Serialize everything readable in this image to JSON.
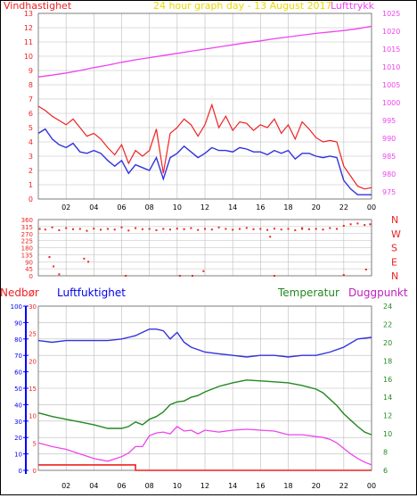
{
  "header": {
    "left_label": "Vindhastighet",
    "center_title": "24 hour graph day - 13 August 2017",
    "right_label": "Lufttrykk"
  },
  "bottom_header": {
    "nedbor": "Nedbør",
    "luftfuktighet": "Luftfuktighet",
    "temperatur": "Temperatur",
    "duggpunkt": "Duggpunkt"
  },
  "colors": {
    "wind_avg": "#3333dd",
    "wind_gust": "#ee2222",
    "pressure": "#ee44ee",
    "direction": "#ee2222",
    "humidity": "#3333dd",
    "temperature": "#228822",
    "dewpoint": "#ee44ee",
    "rain": "#ee2222",
    "rain_axis": "#0000ff",
    "grid": "#bbbbbb"
  },
  "x_ticks": [
    "02",
    "04",
    "06",
    "08",
    "10",
    "12",
    "14",
    "16",
    "18",
    "20",
    "22",
    "00"
  ],
  "chart_data": [
    {
      "type": "line",
      "title": "24 hour graph day - 13 August 2017",
      "x_range_hours": [
        0,
        24
      ],
      "xticks": [
        "02",
        "04",
        "06",
        "08",
        "10",
        "12",
        "14",
        "16",
        "18",
        "20",
        "22",
        "00"
      ],
      "grid": true,
      "y_left": {
        "label": "Vindhastighet",
        "range": [
          0,
          13
        ],
        "ticks": [
          "0",
          "1",
          "2",
          "3",
          "4",
          "5",
          "6",
          "7",
          "8",
          "9",
          "10",
          "11",
          "12",
          "13"
        ]
      },
      "y_right": {
        "label": "Lufttrykk",
        "range": [
          973,
          1025
        ],
        "ticks": [
          "975",
          "980",
          "985",
          "990",
          "995",
          "1000",
          "1005",
          "1010",
          "1015",
          "1020",
          "1025"
        ]
      },
      "series": [
        {
          "name": "Lufttrykk",
          "axis": "right",
          "x": [
            0,
            1,
            2,
            3,
            4,
            5,
            6,
            7,
            8,
            9,
            10,
            11,
            12,
            13,
            14,
            15,
            16,
            17,
            18,
            19,
            20,
            21,
            22,
            23,
            24
          ],
          "y": [
            1007.2,
            1007.7,
            1008.3,
            1009.0,
            1009.8,
            1010.5,
            1011.3,
            1012.0,
            1012.6,
            1013.2,
            1013.8,
            1014.4,
            1015.0,
            1015.6,
            1016.2,
            1016.8,
            1017.3,
            1017.9,
            1018.4,
            1018.9,
            1019.4,
            1019.8,
            1020.2,
            1020.7,
            1021.4
          ]
        },
        {
          "name": "Vindkast",
          "axis": "left",
          "x": [
            0,
            0.5,
            1,
            1.5,
            2,
            2.5,
            3,
            3.5,
            4,
            4.5,
            5,
            5.5,
            6,
            6.5,
            7,
            7.5,
            8,
            8.5,
            9,
            9.5,
            10,
            10.5,
            11,
            11.5,
            12,
            12.5,
            13,
            13.5,
            14,
            14.5,
            15,
            15.5,
            16,
            16.5,
            17,
            17.5,
            18,
            18.5,
            19,
            19.5,
            20,
            20.5,
            21,
            21.5,
            22,
            22.5,
            23,
            23.5,
            24
          ],
          "y": [
            6.5,
            6.2,
            5.8,
            5.5,
            5.2,
            5.6,
            5.0,
            4.4,
            4.6,
            4.2,
            3.6,
            3.1,
            3.8,
            2.5,
            3.4,
            3.0,
            3.4,
            4.9,
            1.8,
            4.6,
            5.0,
            5.6,
            5.2,
            4.4,
            5.2,
            6.6,
            5.0,
            5.8,
            4.8,
            5.4,
            5.3,
            4.8,
            5.2,
            5.0,
            5.6,
            4.6,
            5.2,
            4.2,
            5.4,
            4.9,
            4.3,
            4.0,
            4.1,
            4.0,
            2.3,
            1.6,
            0.9,
            0.7,
            0.8
          ]
        },
        {
          "name": "Vindhastighet",
          "axis": "left",
          "x": [
            0,
            0.5,
            1,
            1.5,
            2,
            2.5,
            3,
            3.5,
            4,
            4.5,
            5,
            5.5,
            6,
            6.5,
            7,
            7.5,
            8,
            8.5,
            9,
            9.5,
            10,
            10.5,
            11,
            11.5,
            12,
            12.5,
            13,
            13.5,
            14,
            14.5,
            15,
            15.5,
            16,
            16.5,
            17,
            17.5,
            18,
            18.5,
            19,
            19.5,
            20,
            20.5,
            21,
            21.5,
            22,
            22.5,
            23,
            23.5,
            24
          ],
          "y": [
            4.6,
            4.9,
            4.2,
            3.8,
            3.6,
            3.9,
            3.3,
            3.2,
            3.4,
            3.2,
            2.7,
            2.3,
            2.7,
            1.8,
            2.4,
            2.2,
            2.0,
            2.9,
            1.4,
            2.9,
            3.2,
            3.7,
            3.3,
            2.9,
            3.2,
            3.6,
            3.4,
            3.4,
            3.3,
            3.6,
            3.5,
            3.3,
            3.3,
            3.1,
            3.4,
            3.2,
            3.4,
            2.8,
            3.2,
            3.2,
            3.0,
            2.9,
            3.0,
            2.9,
            1.3,
            0.7,
            0.3,
            0.3,
            0.3
          ]
        }
      ]
    },
    {
      "type": "scatter",
      "x_range_hours": [
        0,
        24
      ],
      "y_left": {
        "range": [
          0,
          360
        ],
        "ticks": [
          "0",
          "45",
          "90",
          "135",
          "180",
          "225",
          "270",
          "315",
          "360"
        ]
      },
      "y_right": {
        "ticks": [
          "N",
          "W",
          "S",
          "E",
          "N"
        ]
      },
      "series": [
        {
          "name": "Vindretning",
          "x": [
            0.1,
            0.5,
            1.0,
            1.5,
            2.0,
            2.5,
            3.0,
            3.5,
            4.0,
            4.5,
            5.0,
            5.5,
            6.0,
            6.5,
            7.0,
            7.5,
            8.0,
            8.5,
            9.0,
            9.5,
            10.0,
            10.5,
            11.0,
            11.5,
            12.0,
            12.5,
            13.0,
            13.5,
            14.0,
            14.5,
            15.0,
            15.5,
            16.0,
            16.5,
            17.0,
            17.5,
            18.0,
            18.5,
            19.0,
            19.5,
            20.0,
            20.5,
            21.0,
            21.5,
            22.0,
            22.5,
            23.0,
            23.5,
            23.9,
            0.8,
            1.1,
            1.5,
            3.3,
            3.6,
            6.3,
            10.2,
            11.1,
            11.9,
            16.7,
            17.0,
            19.0,
            22.0,
            23.6
          ],
          "y": [
            300,
            296,
            310,
            292,
            305,
            298,
            300,
            288,
            302,
            295,
            300,
            296,
            310,
            290,
            305,
            298,
            300,
            292,
            300,
            296,
            302,
            298,
            305,
            294,
            300,
            296,
            310,
            300,
            295,
            300,
            306,
            298,
            300,
            294,
            302,
            296,
            300,
            292,
            305,
            298,
            300,
            296,
            305,
            300,
            320,
            330,
            335,
            325,
            330,
            120,
            60,
            10,
            110,
            90,
            0,
            0,
            0,
            30,
            250,
            0,
            300,
            5,
            40
          ]
        }
      ]
    },
    {
      "type": "line",
      "x_range_hours": [
        0,
        24
      ],
      "xticks": [
        "02",
        "04",
        "06",
        "08",
        "10",
        "12",
        "14",
        "16",
        "18",
        "20",
        "22",
        "00"
      ],
      "grid": true,
      "y_axis_nedbor": {
        "label": "Nedbør",
        "range": [
          0,
          30
        ],
        "ticks": [
          "0",
          "5",
          "10",
          "15",
          "20",
          "25",
          "30"
        ]
      },
      "y_axis_luftfuktighet": {
        "label": "Luftfuktighet",
        "range": [
          0,
          100
        ],
        "ticks": [
          "0",
          "10",
          "20",
          "30",
          "40",
          "50",
          "60",
          "70",
          "80",
          "90",
          "100"
        ]
      },
      "y_axis_temperatur": {
        "label": "Temperatur",
        "range": [
          6,
          24
        ],
        "ticks": [
          "6",
          "8",
          "10",
          "12",
          "14",
          "16",
          "18",
          "20",
          "22",
          "24"
        ]
      },
      "series": [
        {
          "name": "Luftfuktighet",
          "axis": "humidity",
          "x": [
            0,
            1,
            2,
            3,
            4,
            5,
            6,
            6.5,
            7,
            7.5,
            8,
            8.5,
            9,
            9.5,
            10,
            10.5,
            11,
            12,
            13,
            14,
            15,
            16,
            17,
            18,
            19,
            20,
            21,
            22,
            23,
            24
          ],
          "y": [
            79,
            78,
            79,
            79,
            79,
            79,
            80,
            81,
            82,
            84,
            86,
            86,
            85,
            80,
            84,
            78,
            75,
            72,
            71,
            70,
            69,
            70,
            70,
            69,
            70,
            70,
            72,
            75,
            80,
            81
          ]
        },
        {
          "name": "Temperatur",
          "axis": "temperature",
          "x": [
            0,
            1,
            2,
            3,
            4,
            5,
            6,
            6.5,
            7,
            7.5,
            8,
            8.5,
            9,
            9.5,
            10,
            10.5,
            11,
            11.5,
            12,
            13,
            14,
            15,
            16,
            17,
            18,
            19,
            20,
            20.5,
            21,
            21.5,
            22,
            22.5,
            23,
            23.5,
            24
          ],
          "y": [
            12.3,
            11.9,
            11.6,
            11.3,
            11.0,
            10.6,
            10.6,
            10.8,
            11.3,
            11.0,
            11.6,
            11.9,
            12.4,
            13.2,
            13.5,
            13.6,
            14.0,
            14.2,
            14.6,
            15.2,
            15.6,
            15.9,
            15.8,
            15.7,
            15.6,
            15.3,
            14.9,
            14.5,
            13.8,
            13.1,
            12.2,
            11.5,
            10.8,
            10.2,
            9.9
          ]
        },
        {
          "name": "Duggpunkt",
          "axis": "temperature",
          "x": [
            0,
            1,
            2,
            3,
            4,
            5,
            6,
            6.5,
            7,
            7.5,
            8,
            8.5,
            9,
            9.5,
            10,
            10.5,
            11,
            11.5,
            12,
            13,
            14,
            15,
            16,
            17,
            18,
            19,
            20,
            20.5,
            21,
            21.5,
            22,
            22.5,
            23,
            23.5,
            24
          ],
          "y": [
            9.0,
            8.6,
            8.3,
            7.8,
            7.3,
            7.0,
            7.5,
            7.9,
            8.6,
            8.6,
            9.8,
            10.1,
            10.2,
            10.0,
            10.8,
            10.3,
            10.4,
            10.0,
            10.4,
            10.2,
            10.4,
            10.5,
            10.4,
            10.3,
            9.9,
            9.9,
            9.7,
            9.6,
            9.4,
            9.0,
            8.4,
            7.8,
            7.3,
            6.9,
            6.6
          ]
        },
        {
          "name": "Nedbør",
          "axis": "nedbor",
          "x": [
            0,
            7,
            7,
            24
          ],
          "y": [
            1,
            1,
            0,
            0
          ]
        }
      ]
    }
  ]
}
